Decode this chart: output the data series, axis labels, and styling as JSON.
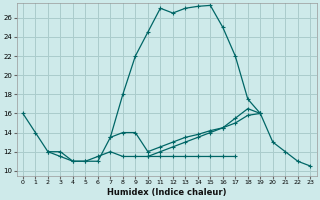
{
  "xlabel": "Humidex (Indice chaleur)",
  "bg_color": "#ceeaea",
  "grid_color": "#aacccc",
  "line_color": "#006666",
  "xlim": [
    -0.5,
    23.5
  ],
  "ylim": [
    9.5,
    27.5
  ],
  "yticks": [
    10,
    12,
    14,
    16,
    18,
    20,
    22,
    24,
    26
  ],
  "xticks": [
    0,
    1,
    2,
    3,
    4,
    5,
    6,
    7,
    8,
    9,
    10,
    11,
    12,
    13,
    14,
    15,
    16,
    17,
    18,
    19,
    20,
    21,
    22,
    23
  ],
  "series": [
    {
      "x": [
        0,
        1,
        2,
        3,
        4,
        5,
        6,
        7,
        8,
        9,
        10,
        11,
        12,
        13,
        14,
        15,
        16,
        17,
        18,
        19
      ],
      "y": [
        16,
        14,
        12,
        12,
        11,
        11,
        11,
        13.5,
        18,
        22,
        24.5,
        27,
        26.5,
        27,
        27.2,
        27.3,
        25,
        22,
        17.5,
        16
      ]
    },
    {
      "x": [
        2,
        3,
        4,
        5,
        6,
        7,
        8,
        9,
        10,
        11,
        12,
        13,
        14,
        15,
        16,
        17
      ],
      "y": [
        12,
        11.5,
        11,
        11,
        11.5,
        12,
        11.5,
        11.5,
        11.5,
        11.5,
        11.5,
        11.5,
        11.5,
        11.5,
        11.5,
        11.5
      ]
    },
    {
      "x": [
        10,
        11,
        12,
        13,
        14,
        15,
        16,
        17,
        18,
        19,
        20,
        21,
        22,
        23
      ],
      "y": [
        11.5,
        12,
        12.5,
        13,
        13.5,
        14,
        14.5,
        15,
        15.8,
        16,
        13,
        12,
        11,
        10.5
      ]
    },
    {
      "x": [
        7,
        8,
        9,
        10,
        11,
        12,
        13,
        14,
        15,
        16,
        17,
        18,
        19
      ],
      "y": [
        13.5,
        14,
        14,
        12,
        12.5,
        13,
        13.5,
        13.8,
        14.2,
        14.5,
        15.5,
        16.5,
        16
      ]
    }
  ]
}
